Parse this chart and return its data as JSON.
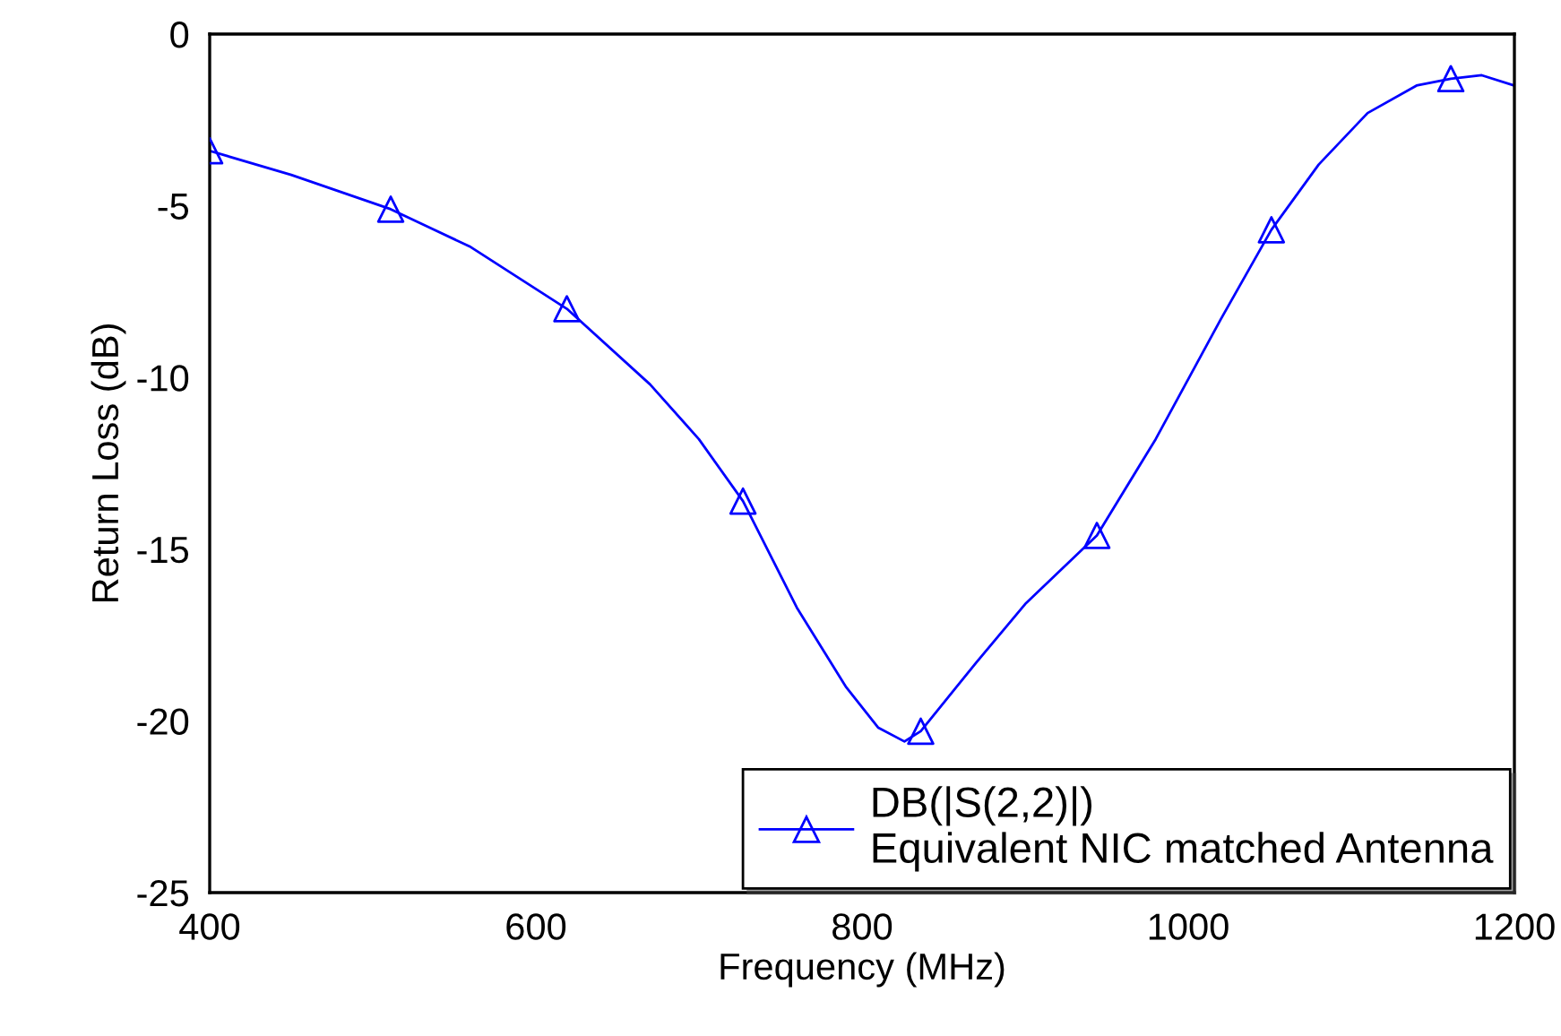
{
  "chart_data": {
    "type": "line",
    "xlabel": "Frequency (MHz)",
    "ylabel": "Return Loss (dB)",
    "xlim": [
      400,
      1200
    ],
    "xticks": [
      400,
      600,
      800,
      1000,
      1200
    ],
    "ylim": [
      -25,
      0
    ],
    "yticks": [
      -25,
      -20,
      -15,
      -10,
      -5,
      0
    ],
    "grid": false,
    "legend": "bottom right",
    "line_style": "solid",
    "series": [
      {
        "color": "#0000ff",
        "marker": "none",
        "x": [
          400,
          450,
          511,
          560,
          619,
          670,
          700,
          727,
          760,
          790,
          810,
          826,
          836,
          870,
          900,
          944,
          980,
          1020,
          1051,
          1080,
          1110,
          1140,
          1161,
          1180,
          1200
        ],
        "values": [
          -3.4,
          -4.1,
          -5.1,
          -6.2,
          -8.0,
          -10.2,
          -11.8,
          -13.6,
          -16.7,
          -19.0,
          -20.2,
          -20.6,
          -20.3,
          -18.3,
          -16.6,
          -14.6,
          -11.8,
          -8.3,
          -5.7,
          -3.8,
          -2.3,
          -1.5,
          -1.3,
          -1.2,
          -1.5
        ]
      },
      {
        "type": "scatter",
        "name": "DB(|S(2,2)|)\nEquivalent NIC matched Antenna",
        "color": "#0000ff",
        "marker": "triangle",
        "x": [
          400,
          511,
          619,
          727,
          836,
          944,
          1051,
          1161
        ],
        "values": [
          -3.4,
          -5.1,
          -8.0,
          -13.6,
          -20.3,
          -14.6,
          -5.7,
          -1.3
        ]
      }
    ]
  }
}
